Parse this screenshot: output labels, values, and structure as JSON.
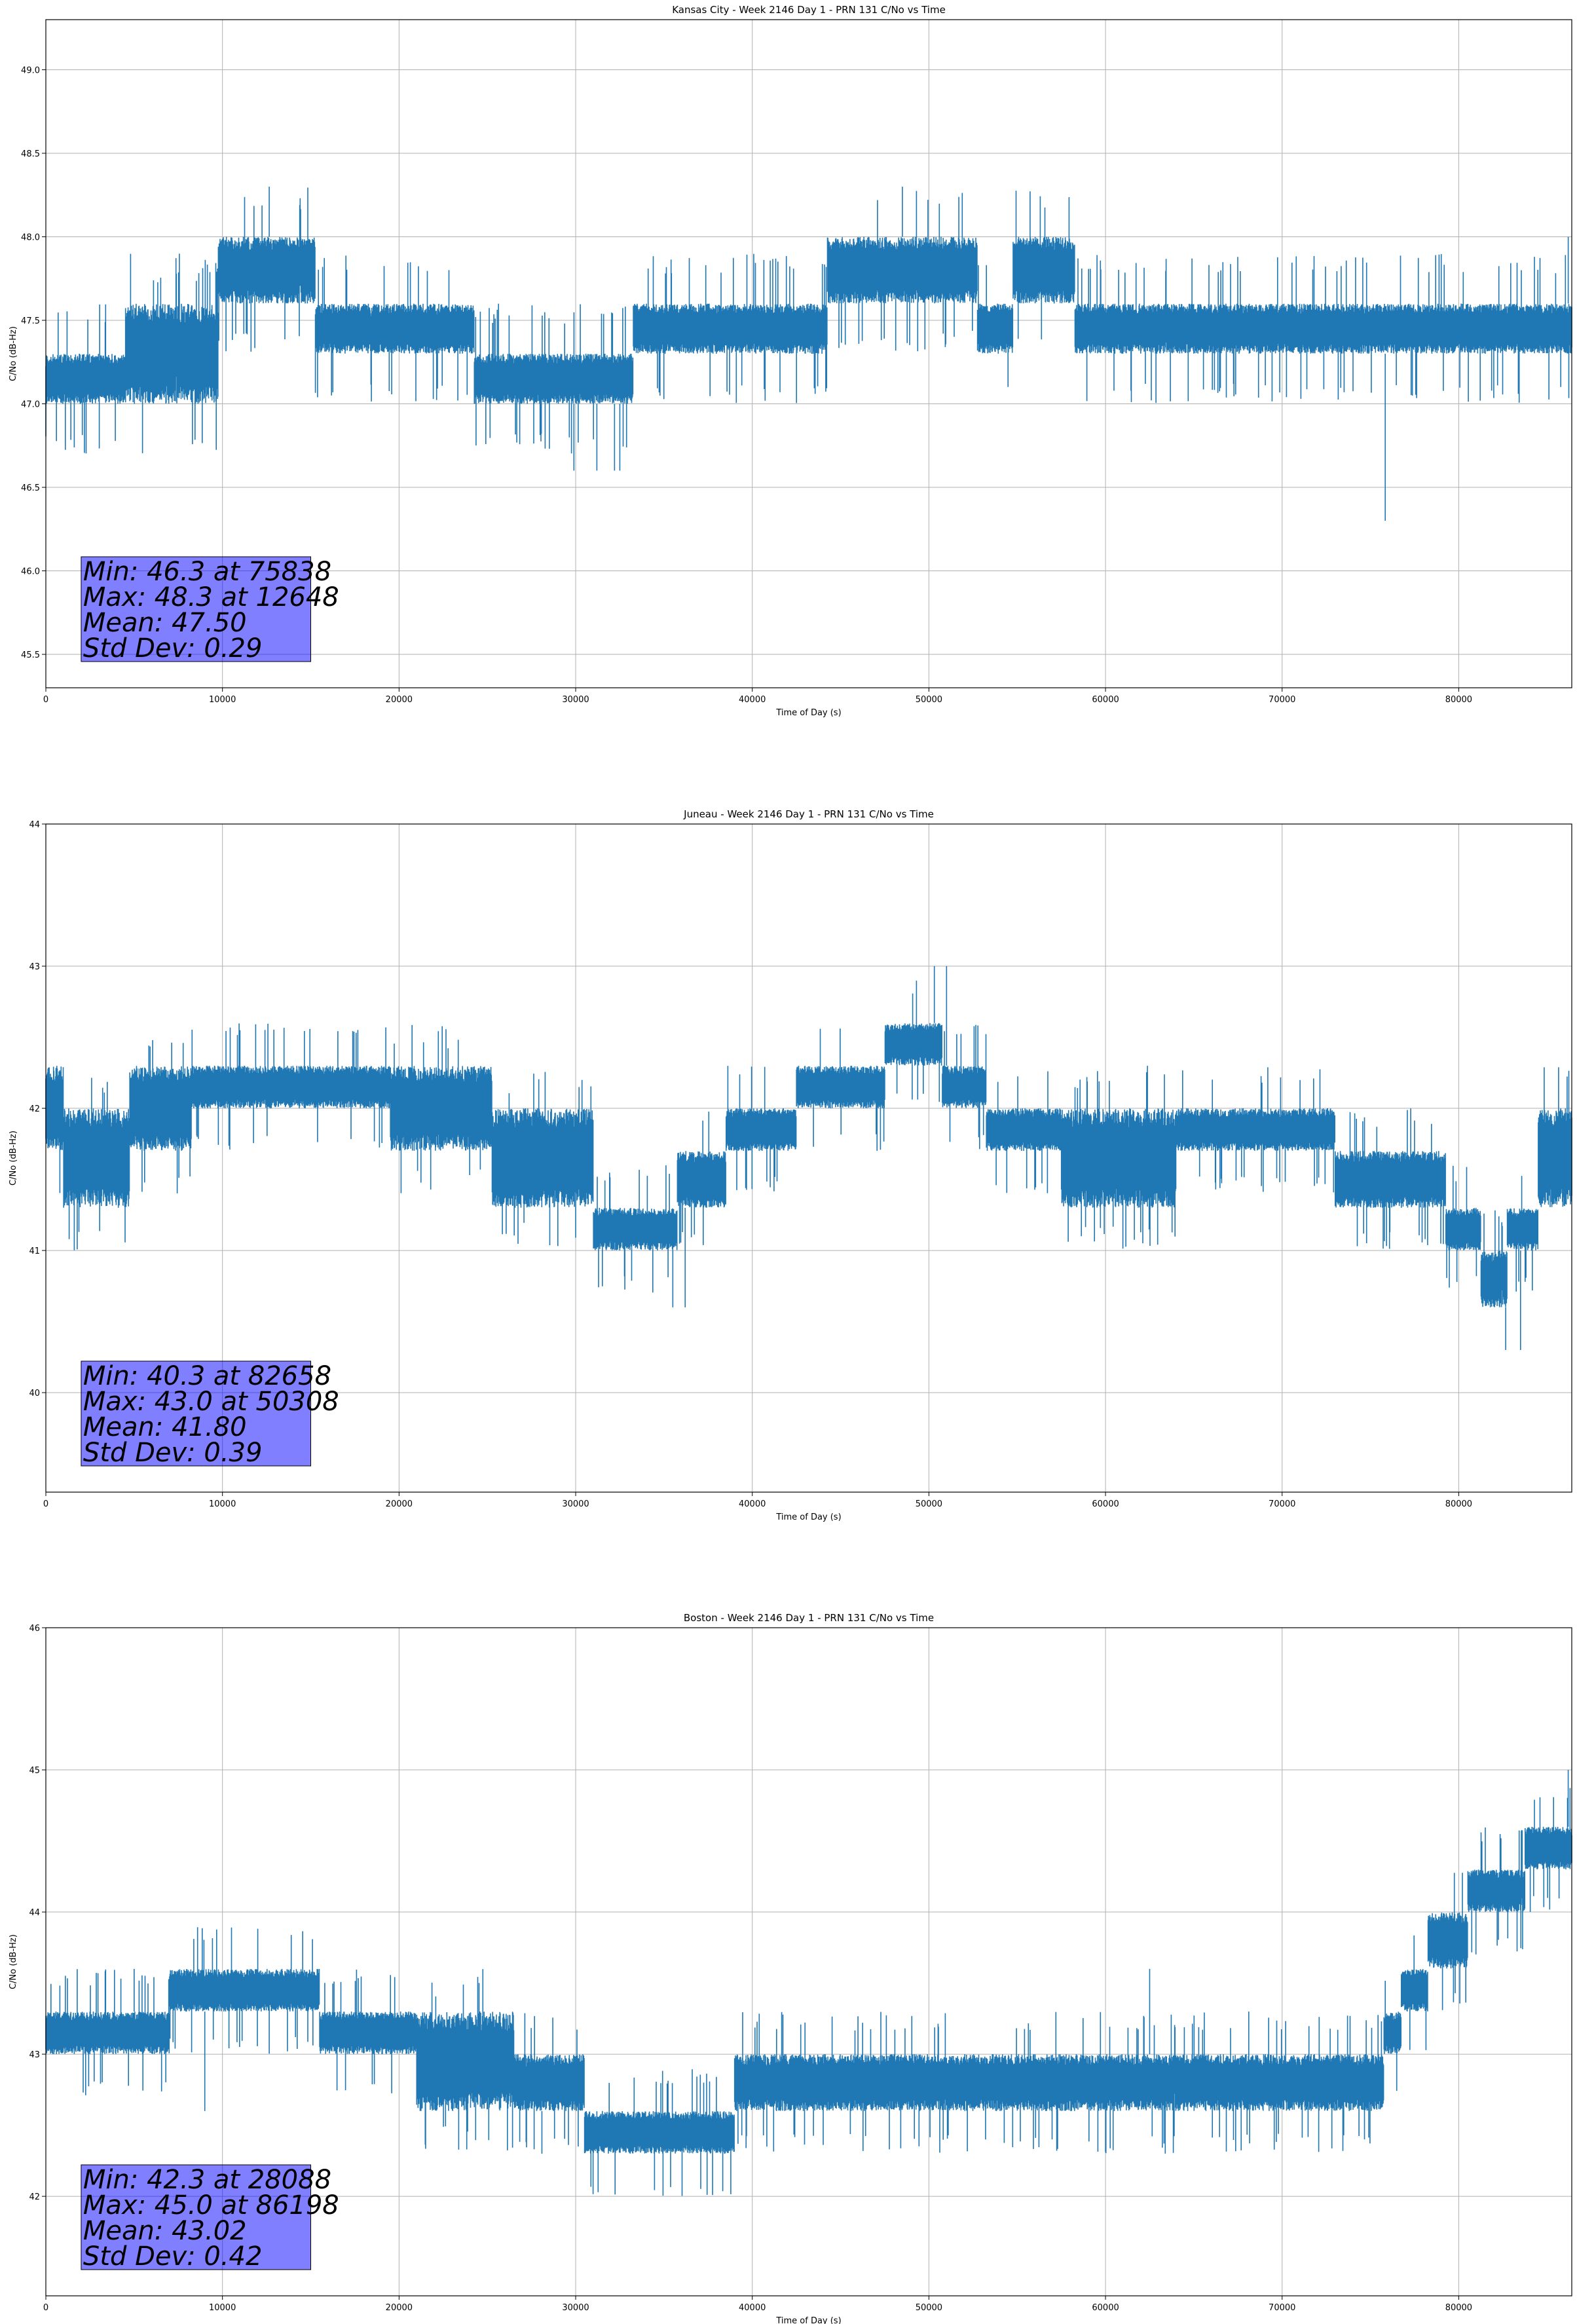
{
  "chart_data": [
    {
      "type": "line",
      "title": "Kansas City - Week 2146 Day 1 - PRN 131 C/No vs Time",
      "xlabel": "Time of Day (s)",
      "ylabel": "C/No (dB-Hz)",
      "xlim": [
        0,
        86400
      ],
      "ylim": [
        45.3,
        49.3
      ],
      "xticks": [
        0,
        10000,
        20000,
        30000,
        40000,
        50000,
        60000,
        70000,
        80000
      ],
      "yticks": [
        45.5,
        46.0,
        46.5,
        47.0,
        47.5,
        48.0,
        48.5,
        49.0
      ],
      "ytick_labels": [
        "45.5",
        "46.0",
        "46.5",
        "47.0",
        "47.5",
        "48.0",
        "48.5",
        "49.0"
      ],
      "grid": true,
      "color": "#1f77b4",
      "profile": [
        {
          "x": 0,
          "lo": 47.0,
          "hi": 47.3
        },
        {
          "x": 9000,
          "lo": 47.0,
          "hi": 47.6
        },
        {
          "x": 10500,
          "lo": 47.6,
          "hi": 48.0
        },
        {
          "x": 20000,
          "lo": 47.3,
          "hi": 47.6
        },
        {
          "x": 28500,
          "lo": 47.0,
          "hi": 47.3
        },
        {
          "x": 38000,
          "lo": 47.3,
          "hi": 47.6
        },
        {
          "x": 43000,
          "lo": 47.3,
          "hi": 47.6
        },
        {
          "x": 45500,
          "lo": 47.6,
          "hi": 48.0
        },
        {
          "x": 52000,
          "lo": 47.6,
          "hi": 48.0
        },
        {
          "x": 53500,
          "lo": 47.3,
          "hi": 47.6
        },
        {
          "x": 56000,
          "lo": 47.6,
          "hi": 48.0
        },
        {
          "x": 60500,
          "lo": 47.3,
          "hi": 47.6
        },
        {
          "x": 86400,
          "lo": 47.3,
          "hi": 47.6
        }
      ],
      "outliers": [
        [
          29900,
          46.6
        ],
        [
          31200,
          46.6
        ],
        [
          32200,
          46.6
        ],
        [
          32500,
          46.6
        ],
        [
          75838,
          46.3
        ],
        [
          12648,
          48.3
        ],
        [
          48500,
          48.3
        ],
        [
          86200,
          48.0
        ]
      ],
      "stats": {
        "min_label": "Min: 46.3 at 75838",
        "max_label": "Max: 48.3 at 12648",
        "mean_label": "Mean: 47.50",
        "std_label": "Std Dev: 0.29"
      }
    },
    {
      "type": "line",
      "title": "Juneau - Week 2146 Day 1 - PRN 131 C/No vs Time",
      "xlabel": "Time of Day (s)",
      "ylabel": "C/No (dB-Hz)",
      "xlim": [
        0,
        86400
      ],
      "ylim": [
        39.3,
        44.0
      ],
      "xticks": [
        0,
        10000,
        20000,
        30000,
        40000,
        50000,
        60000,
        70000,
        80000
      ],
      "yticks": [
        40,
        41,
        42,
        43,
        44
      ],
      "ytick_labels": [
        "40",
        "41",
        "42",
        "43",
        "44"
      ],
      "grid": true,
      "color": "#1f77b4",
      "profile": [
        {
          "x": 0,
          "lo": 41.7,
          "hi": 42.3
        },
        {
          "x": 2000,
          "lo": 41.3,
          "hi": 42.0
        },
        {
          "x": 7500,
          "lo": 41.7,
          "hi": 42.3
        },
        {
          "x": 9000,
          "lo": 42.0,
          "hi": 42.3
        },
        {
          "x": 16000,
          "lo": 42.0,
          "hi": 42.3
        },
        {
          "x": 23000,
          "lo": 41.7,
          "hi": 42.3
        },
        {
          "x": 27500,
          "lo": 41.3,
          "hi": 42.0
        },
        {
          "x": 34500,
          "lo": 41.0,
          "hi": 41.3
        },
        {
          "x": 37000,
          "lo": 41.3,
          "hi": 41.7
        },
        {
          "x": 40000,
          "lo": 41.7,
          "hi": 42.0
        },
        {
          "x": 45000,
          "lo": 42.0,
          "hi": 42.3
        },
        {
          "x": 50000,
          "lo": 42.3,
          "hi": 42.6
        },
        {
          "x": 51500,
          "lo": 42.0,
          "hi": 42.3
        },
        {
          "x": 55000,
          "lo": 41.7,
          "hi": 42.0
        },
        {
          "x": 60000,
          "lo": 41.3,
          "hi": 42.0
        },
        {
          "x": 68000,
          "lo": 41.7,
          "hi": 42.0
        },
        {
          "x": 78000,
          "lo": 41.3,
          "hi": 41.7
        },
        {
          "x": 80500,
          "lo": 41.0,
          "hi": 41.3
        },
        {
          "x": 82000,
          "lo": 40.6,
          "hi": 41.0
        },
        {
          "x": 83500,
          "lo": 41.0,
          "hi": 41.3
        },
        {
          "x": 85500,
          "lo": 41.3,
          "hi": 42.0
        },
        {
          "x": 86400,
          "lo": 41.3,
          "hi": 42.0
        }
      ],
      "outliers": [
        [
          35500,
          40.6
        ],
        [
          36200,
          40.6
        ],
        [
          82658,
          40.3
        ],
        [
          83500,
          40.3
        ],
        [
          50308,
          43.0
        ],
        [
          51000,
          43.0
        ]
      ],
      "stats": {
        "min_label": "Min: 40.3 at 82658",
        "max_label": "Max: 43.0 at 50308",
        "mean_label": "Mean: 41.80",
        "std_label": "Std Dev: 0.39"
      }
    },
    {
      "type": "line",
      "title": "Boston - Week 2146 Day 1 - PRN 131 C/No vs Time",
      "xlabel": "Time of Day (s)",
      "ylabel": "C/No (dB-Hz)",
      "xlim": [
        0,
        86400
      ],
      "ylim": [
        41.3,
        46.0
      ],
      "xticks": [
        0,
        10000,
        20000,
        30000,
        40000,
        50000,
        60000,
        70000,
        80000
      ],
      "yticks": [
        42,
        43,
        44,
        45,
        46
      ],
      "ytick_labels": [
        "42",
        "43",
        "44",
        "45",
        "46"
      ],
      "grid": true,
      "color": "#1f77b4",
      "profile": [
        {
          "x": 0,
          "lo": 43.0,
          "hi": 43.3
        },
        {
          "x": 14000,
          "lo": 43.3,
          "hi": 43.6
        },
        {
          "x": 17000,
          "lo": 43.0,
          "hi": 43.3
        },
        {
          "x": 25000,
          "lo": 42.6,
          "hi": 43.3
        },
        {
          "x": 28000,
          "lo": 42.6,
          "hi": 43.0
        },
        {
          "x": 33000,
          "lo": 42.3,
          "hi": 42.6
        },
        {
          "x": 38500,
          "lo": 42.3,
          "hi": 42.6
        },
        {
          "x": 39500,
          "lo": 42.6,
          "hi": 43.0
        },
        {
          "x": 75500,
          "lo": 42.6,
          "hi": 43.0
        },
        {
          "x": 76000,
          "lo": 43.0,
          "hi": 43.3
        },
        {
          "x": 77500,
          "lo": 43.3,
          "hi": 43.6
        },
        {
          "x": 79000,
          "lo": 43.6,
          "hi": 44.0
        },
        {
          "x": 82000,
          "lo": 44.0,
          "hi": 44.3
        },
        {
          "x": 85500,
          "lo": 44.3,
          "hi": 44.6
        },
        {
          "x": 86400,
          "lo": 44.3,
          "hi": 44.6
        }
      ],
      "outliers": [
        [
          28088,
          42.3
        ],
        [
          9000,
          42.6
        ],
        [
          86198,
          45.0
        ],
        [
          62500,
          43.6
        ],
        [
          5000,
          43.6
        ]
      ],
      "stats": {
        "min_label": "Min: 42.3 at 28088",
        "max_label": "Max: 45.0 at 86198",
        "mean_label": "Mean: 43.02",
        "std_label": "Std Dev: 0.42"
      }
    }
  ]
}
